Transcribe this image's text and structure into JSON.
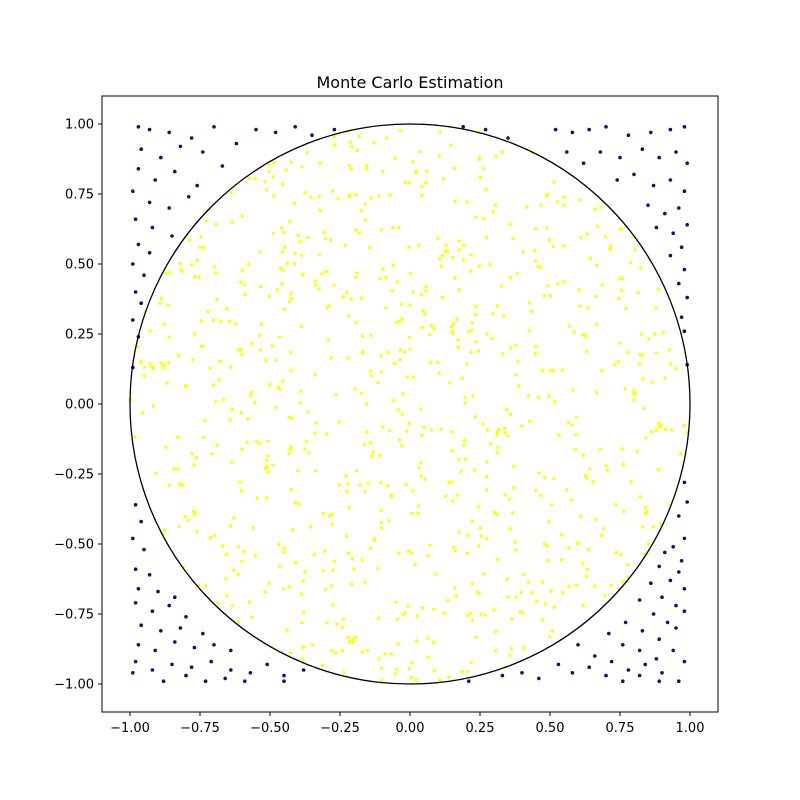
{
  "chart_data": {
    "type": "scatter",
    "title": "Monte Carlo Estimation",
    "xlabel": "",
    "ylabel": "",
    "xlim": [
      -1.1,
      1.1
    ],
    "ylim": [
      -1.1,
      1.1
    ],
    "xticks": [
      -1.0,
      -0.75,
      -0.5,
      -0.25,
      0.0,
      0.25,
      0.5,
      0.75,
      1.0
    ],
    "yticks": [
      -1.0,
      -0.75,
      -0.5,
      -0.25,
      0.0,
      0.25,
      0.5,
      0.75,
      1.0
    ],
    "xtick_labels": [
      "−1.00",
      "−0.75",
      "−0.50",
      "−0.25",
      "0.00",
      "0.25",
      "0.50",
      "0.75",
      "1.00"
    ],
    "ytick_labels": [
      "−1.00",
      "−0.75",
      "−0.50",
      "−0.25",
      "0.00",
      "0.25",
      "0.50",
      "0.75",
      "1.00"
    ],
    "grid": false,
    "legend": "none",
    "circle": {
      "center": [
        0,
        0
      ],
      "radius": 1.0,
      "color": "#000000"
    },
    "sample_count": 1000,
    "colors": {
      "inside": "#ffff00",
      "outside": "#1a0a6e"
    },
    "series": [
      {
        "points": [
          [
            -0.97,
            0.99
          ],
          [
            -0.93,
            0.98
          ],
          [
            -0.86,
            0.97
          ],
          [
            -0.78,
            0.95
          ],
          [
            -0.7,
            0.99
          ],
          [
            -0.62,
            0.93
          ],
          [
            -0.55,
            0.98
          ],
          [
            -0.48,
            0.97
          ],
          [
            -0.41,
            0.99
          ],
          [
            -0.35,
            0.96
          ],
          [
            -0.27,
            0.98
          ],
          [
            -0.96,
            0.91
          ],
          [
            -0.89,
            0.88
          ],
          [
            -0.82,
            0.92
          ],
          [
            -0.74,
            0.9
          ],
          [
            -0.67,
            0.85
          ],
          [
            -0.97,
            0.84
          ],
          [
            -0.91,
            0.8
          ],
          [
            -0.84,
            0.83
          ],
          [
            -0.76,
            0.78
          ],
          [
            -0.99,
            0.76
          ],
          [
            -0.93,
            0.72
          ],
          [
            -0.86,
            0.7
          ],
          [
            -0.79,
            0.74
          ],
          [
            -0.98,
            0.66
          ],
          [
            -0.92,
            0.63
          ],
          [
            -0.85,
            0.6
          ],
          [
            -0.97,
            0.57
          ],
          [
            -0.93,
            0.54
          ],
          [
            -0.99,
            0.5
          ],
          [
            -0.95,
            0.46
          ],
          [
            -0.98,
            0.4
          ],
          [
            -0.96,
            0.36
          ],
          [
            -0.99,
            0.3
          ],
          [
            -0.97,
            0.24
          ],
          [
            -0.99,
            0.13
          ],
          [
            -0.98,
            -0.36
          ],
          [
            -0.96,
            -0.42
          ],
          [
            -0.99,
            -0.48
          ],
          [
            -0.95,
            -0.52
          ],
          [
            -0.98,
            -0.59
          ],
          [
            -0.93,
            -0.61
          ],
          [
            -0.97,
            -0.66
          ],
          [
            -0.9,
            -0.67
          ],
          [
            -0.84,
            -0.69
          ],
          [
            -0.98,
            -0.71
          ],
          [
            -0.92,
            -0.74
          ],
          [
            -0.86,
            -0.72
          ],
          [
            -0.8,
            -0.76
          ],
          [
            -0.96,
            -0.79
          ],
          [
            -0.89,
            -0.81
          ],
          [
            -0.82,
            -0.8
          ],
          [
            -0.74,
            -0.82
          ],
          [
            -0.97,
            -0.86
          ],
          [
            -0.91,
            -0.88
          ],
          [
            -0.84,
            -0.85
          ],
          [
            -0.77,
            -0.87
          ],
          [
            -0.7,
            -0.86
          ],
          [
            -0.64,
            -0.88
          ],
          [
            -0.98,
            -0.92
          ],
          [
            -0.92,
            -0.95
          ],
          [
            -0.85,
            -0.93
          ],
          [
            -0.78,
            -0.94
          ],
          [
            -0.71,
            -0.92
          ],
          [
            -0.64,
            -0.95
          ],
          [
            -0.57,
            -0.96
          ],
          [
            -0.51,
            -0.93
          ],
          [
            -0.45,
            -0.97
          ],
          [
            -0.38,
            -0.95
          ],
          [
            -0.99,
            -0.96
          ],
          [
            -0.88,
            -0.99
          ],
          [
            -0.8,
            -0.97
          ],
          [
            -0.73,
            -0.99
          ],
          [
            -0.66,
            -0.98
          ],
          [
            -0.59,
            -0.99
          ],
          [
            -0.45,
            -0.99
          ],
          [
            0.19,
            0.99
          ],
          [
            0.27,
            0.98
          ],
          [
            0.35,
            0.95
          ],
          [
            0.52,
            0.98
          ],
          [
            0.58,
            0.97
          ],
          [
            0.64,
            0.98
          ],
          [
            0.7,
            0.99
          ],
          [
            0.78,
            0.96
          ],
          [
            0.86,
            0.97
          ],
          [
            0.93,
            0.98
          ],
          [
            0.98,
            0.99
          ],
          [
            0.56,
            0.9
          ],
          [
            0.62,
            0.86
          ],
          [
            0.68,
            0.9
          ],
          [
            0.75,
            0.88
          ],
          [
            0.83,
            0.91
          ],
          [
            0.89,
            0.88
          ],
          [
            0.95,
            0.9
          ],
          [
            0.99,
            0.86
          ],
          [
            0.74,
            0.8
          ],
          [
            0.8,
            0.82
          ],
          [
            0.87,
            0.78
          ],
          [
            0.93,
            0.8
          ],
          [
            0.98,
            0.76
          ],
          [
            0.85,
            0.71
          ],
          [
            0.91,
            0.68
          ],
          [
            0.96,
            0.7
          ],
          [
            0.99,
            0.64
          ],
          [
            0.88,
            0.63
          ],
          [
            0.94,
            0.61
          ],
          [
            0.97,
            0.56
          ],
          [
            0.93,
            0.53
          ],
          [
            0.98,
            0.48
          ],
          [
            0.96,
            0.43
          ],
          [
            0.99,
            0.38
          ],
          [
            0.97,
            0.31
          ],
          [
            0.98,
            0.26
          ],
          [
            0.99,
            0.14
          ],
          [
            0.98,
            -0.28
          ],
          [
            0.99,
            -0.35
          ],
          [
            0.96,
            -0.4
          ],
          [
            0.98,
            -0.48
          ],
          [
            0.94,
            -0.51
          ],
          [
            0.97,
            -0.56
          ],
          [
            0.91,
            -0.53
          ],
          [
            0.96,
            -0.6
          ],
          [
            0.89,
            -0.58
          ],
          [
            0.93,
            -0.63
          ],
          [
            0.98,
            -0.66
          ],
          [
            0.86,
            -0.64
          ],
          [
            0.9,
            -0.69
          ],
          [
            0.95,
            -0.72
          ],
          [
            0.82,
            -0.7
          ],
          [
            0.87,
            -0.75
          ],
          [
            0.92,
            -0.78
          ],
          [
            0.98,
            -0.74
          ],
          [
            0.77,
            -0.78
          ],
          [
            0.83,
            -0.81
          ],
          [
            0.89,
            -0.84
          ],
          [
            0.95,
            -0.8
          ],
          [
            0.71,
            -0.82
          ],
          [
            0.76,
            -0.86
          ],
          [
            0.82,
            -0.88
          ],
          [
            0.88,
            -0.91
          ],
          [
            0.94,
            -0.88
          ],
          [
            0.98,
            -0.92
          ],
          [
            0.6,
            -0.86
          ],
          [
            0.66,
            -0.9
          ],
          [
            0.72,
            -0.92
          ],
          [
            0.78,
            -0.95
          ],
          [
            0.84,
            -0.93
          ],
          [
            0.9,
            -0.96
          ],
          [
            0.96,
            -0.99
          ],
          [
            0.53,
            -0.93
          ],
          [
            0.58,
            -0.96
          ],
          [
            0.64,
            -0.94
          ],
          [
            0.7,
            -0.97
          ],
          [
            0.76,
            -0.99
          ],
          [
            0.82,
            -0.97
          ],
          [
            0.4,
            -0.96
          ],
          [
            0.46,
            -0.98
          ],
          [
            0.33,
            -0.97
          ],
          [
            0.21,
            -0.99
          ],
          [
            0.89,
            -0.99
          ]
        ]
      }
    ]
  }
}
